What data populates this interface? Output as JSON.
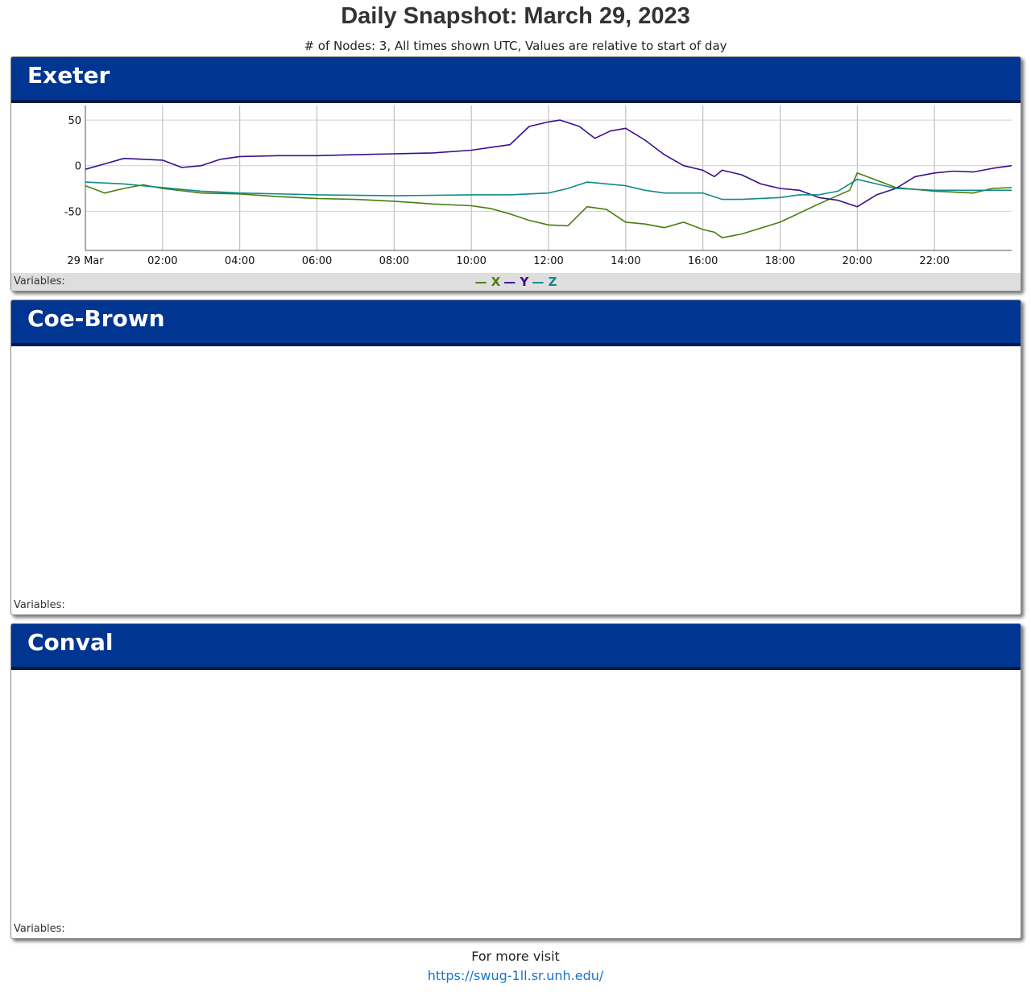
{
  "page": {
    "title": "Daily Snapshot: March 29, 2023",
    "subtitle": "# of Nodes: 3, All times shown UTC, Values are relative to start of day"
  },
  "panels": [
    {
      "name": "Exeter",
      "variables_label": "Variables:"
    },
    {
      "name": "Coe-Brown",
      "variables_label": "Variables:"
    },
    {
      "name": "Conval",
      "variables_label": "Variables:"
    }
  ],
  "footer": {
    "text": "For more visit",
    "link_text": "https://swug-1ll.sr.unh.edu/"
  },
  "chart_data": {
    "type": "line",
    "title": "",
    "xlabel": "",
    "ylabel": "",
    "x_ticks": [
      "29 Mar",
      "02:00",
      "04:00",
      "06:00",
      "08:00",
      "10:00",
      "12:00",
      "14:00",
      "16:00",
      "18:00",
      "20:00",
      "22:00"
    ],
    "y_ticks": [
      50,
      0,
      -50
    ],
    "xlim_hours": [
      0,
      24
    ],
    "ylim": [
      -93,
      66
    ],
    "grid": true,
    "legend": "bottom-center",
    "series": [
      {
        "name": "X",
        "color": "#4a7c0f",
        "x": [
          0,
          0.5,
          1,
          1.5,
          2,
          3,
          4,
          5,
          6,
          7,
          8,
          9,
          10,
          10.5,
          11,
          11.5,
          12,
          12.5,
          13,
          13.5,
          14,
          14.5,
          15,
          15.5,
          16,
          16.3,
          16.5,
          17,
          18,
          19,
          19.8,
          20,
          21,
          22,
          23,
          23.5,
          24
        ],
        "values": [
          -22,
          -30,
          -25,
          -21,
          -25,
          -30,
          -31,
          -34,
          -36,
          -37,
          -39,
          -42,
          -44,
          -47,
          -53,
          -60,
          -65,
          -66,
          -45,
          -48,
          -62,
          -64,
          -68,
          -62,
          -70,
          -73,
          -79,
          -75,
          -62,
          -42,
          -27,
          -8,
          -24,
          -28,
          -30,
          -25,
          -24
        ]
      },
      {
        "name": "Y",
        "color": "#3a0d8c",
        "x": [
          0,
          0.5,
          1,
          1.5,
          2,
          2.5,
          3,
          3.5,
          4,
          5,
          6,
          7,
          8,
          9,
          10,
          10.5,
          11,
          11.5,
          12,
          12.3,
          12.8,
          13.2,
          13.6,
          14,
          14.5,
          15,
          15.5,
          16,
          16.3,
          16.5,
          17,
          17.5,
          18,
          18.5,
          19,
          19.5,
          20,
          20.5,
          21,
          21.5,
          22,
          22.5,
          23,
          23.5,
          24
        ],
        "values": [
          -4,
          2,
          8,
          7,
          6,
          -2,
          0,
          7,
          10,
          11,
          11,
          12,
          13,
          14,
          17,
          20,
          23,
          43,
          48,
          50,
          43,
          30,
          38,
          41,
          28,
          12,
          0,
          -5,
          -12,
          -5,
          -10,
          -20,
          -25,
          -27,
          -35,
          -38,
          -45,
          -32,
          -25,
          -12,
          -8,
          -6,
          -7,
          -3,
          0
        ]
      },
      {
        "name": "Z",
        "color": "#0e8a8a",
        "x": [
          0,
          1,
          2,
          3,
          4,
          6,
          8,
          10,
          11,
          12,
          12.5,
          13,
          14,
          14.5,
          15,
          16,
          16.5,
          17,
          18,
          18.5,
          19,
          19.5,
          20,
          20.5,
          21,
          22,
          23,
          24
        ],
        "values": [
          -18,
          -20,
          -24,
          -28,
          -30,
          -32,
          -33,
          -32,
          -32,
          -30,
          -25,
          -18,
          -22,
          -27,
          -30,
          -30,
          -37,
          -37,
          -35,
          -32,
          -32,
          -28,
          -15,
          -20,
          -25,
          -27,
          -27,
          -27
        ]
      }
    ]
  }
}
